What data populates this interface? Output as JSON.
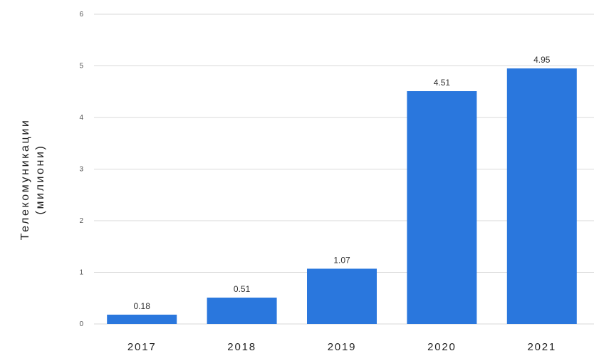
{
  "chart_data": {
    "type": "bar",
    "categories": [
      "2017",
      "2018",
      "2019",
      "2020",
      "2021"
    ],
    "values": [
      0.18,
      0.51,
      1.07,
      4.51,
      4.95
    ],
    "value_labels": [
      "0.18",
      "0.51",
      "1.07",
      "4.51",
      "4.95"
    ],
    "ylabel_line1": "Телекомуникации",
    "ylabel_line2": "(милиони)",
    "xlabel": "",
    "ylim": [
      0,
      6
    ],
    "yticks": [
      "0",
      "1",
      "2",
      "3",
      "4",
      "5",
      "6"
    ],
    "grid": true,
    "bar_color": "#2a77dd",
    "grid_color": "#d9d9d9"
  }
}
